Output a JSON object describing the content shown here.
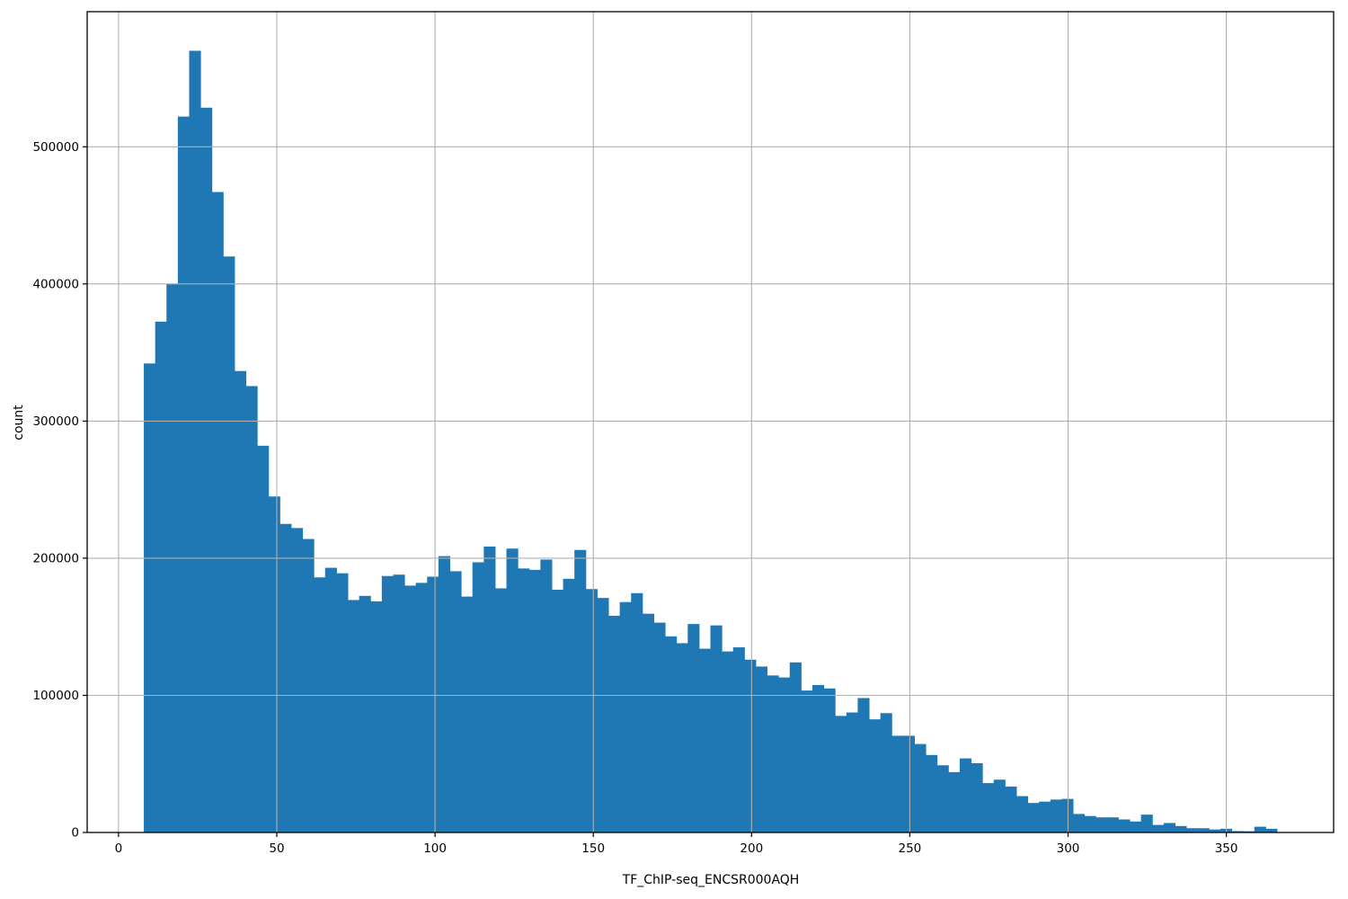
{
  "figure": {
    "background": "#ffffff",
    "frame_color": "#000000"
  },
  "chart_data": {
    "type": "bar",
    "subtype": "histogram",
    "title": "",
    "xlabel": "TF_ChIP-seq_ENCSR000AQH",
    "ylabel": "count",
    "bar_color": "#1f77b4",
    "grid": true,
    "grid_color": "#b0b0b0",
    "grid_above_bars": true,
    "xlim": [
      -9.9,
      383.9
    ],
    "ylim": [
      0,
      598500
    ],
    "x_ticks": [
      0,
      50,
      100,
      150,
      200,
      250,
      300,
      350
    ],
    "y_ticks": [
      0,
      100000,
      200000,
      300000,
      400000,
      500000
    ],
    "bins": {
      "start": 8.0,
      "width": 3.58,
      "count": 100
    },
    "counts": [
      342000,
      372500,
      400000,
      522000,
      570000,
      528500,
      467000,
      420000,
      336500,
      325500,
      282000,
      245000,
      225000,
      222000,
      214000,
      186000,
      193000,
      189000,
      169500,
      172500,
      168500,
      187000,
      188000,
      180000,
      182000,
      186500,
      201500,
      190500,
      172000,
      197000,
      208500,
      178000,
      207000,
      192500,
      191500,
      199000,
      177000,
      185000,
      206000,
      177500,
      171000,
      158000,
      168000,
      174500,
      159500,
      153000,
      143000,
      138000,
      152000,
      134000,
      151000,
      132000,
      135000,
      126000,
      121000,
      114500,
      113000,
      124000,
      103500,
      107500,
      105000,
      85000,
      87500,
      98000,
      82500,
      87000,
      70500,
      70500,
      64500,
      56500,
      49000,
      44000,
      54000,
      50500,
      36000,
      38500,
      33500,
      26500,
      21500,
      22500,
      24000,
      24500,
      13500,
      12000,
      11000,
      11000,
      9500,
      8000,
      13000,
      5500,
      6900,
      4700,
      3100,
      3100,
      2200,
      2700,
      1000,
      900,
      4200,
      2700
    ]
  }
}
